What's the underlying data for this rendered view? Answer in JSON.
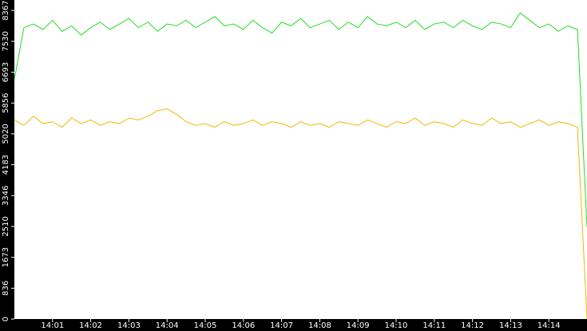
{
  "chart_data": {
    "type": "line",
    "x": [
      0,
      0.25,
      0.5,
      0.75,
      1,
      1.25,
      1.5,
      1.75,
      2,
      2.25,
      2.5,
      2.75,
      3,
      3.25,
      3.5,
      3.75,
      4,
      4.25,
      4.5,
      4.75,
      5,
      5.25,
      5.5,
      5.75,
      6,
      6.25,
      6.5,
      6.75,
      7,
      7.25,
      7.5,
      7.75,
      8,
      8.25,
      8.5,
      8.75,
      9,
      9.25,
      9.5,
      9.75,
      10,
      10.25,
      10.5,
      10.75,
      11,
      11.25,
      11.5,
      11.75,
      12,
      12.25,
      12.5,
      12.75,
      13,
      13.25,
      13.5,
      13.75,
      14,
      14.25,
      14.5,
      14.75,
      15
    ],
    "series": [
      {
        "color": "#22dd22",
        "values": [
          6500,
          7900,
          8000,
          7850,
          8100,
          7800,
          7950,
          7700,
          7900,
          8050,
          7850,
          8000,
          8150,
          7900,
          8050,
          7800,
          8000,
          7950,
          8100,
          7900,
          8050,
          8200,
          7950,
          8000,
          7850,
          8100,
          7900,
          7750,
          8050,
          7950,
          8150,
          7900,
          8000,
          8100,
          7850,
          8050,
          7900,
          8200,
          8000,
          7950,
          8050,
          7900,
          8100,
          7850,
          8000,
          8050,
          7900,
          8100,
          7950,
          7850,
          8050,
          8000,
          7900,
          8300,
          8100,
          7900,
          8000,
          7800,
          7950,
          7850,
          2500
        ]
      },
      {
        "color": "#f0b800",
        "values": [
          5400,
          5250,
          5500,
          5300,
          5350,
          5200,
          5450,
          5300,
          5400,
          5250,
          5350,
          5300,
          5450,
          5400,
          5500,
          5650,
          5700,
          5550,
          5350,
          5250,
          5300,
          5200,
          5350,
          5250,
          5300,
          5400,
          5250,
          5350,
          5300,
          5200,
          5350,
          5250,
          5300,
          5200,
          5350,
          5300,
          5250,
          5400,
          5300,
          5200,
          5350,
          5300,
          5450,
          5250,
          5350,
          5300,
          5200,
          5400,
          5300,
          5250,
          5450,
          5300,
          5350,
          5200,
          5300,
          5400,
          5250,
          5350,
          5300,
          5200,
          0
        ]
      }
    ],
    "xlim": [
      0,
      15
    ],
    "ylim": [
      0,
      8650
    ],
    "xticks": [
      {
        "value": 1,
        "label": "14:01"
      },
      {
        "value": 2,
        "label": "14:02"
      },
      {
        "value": 3,
        "label": "14:03"
      },
      {
        "value": 4,
        "label": "14:04"
      },
      {
        "value": 5,
        "label": "14:05"
      },
      {
        "value": 6,
        "label": "14:06"
      },
      {
        "value": 7,
        "label": "14:07"
      },
      {
        "value": 8,
        "label": "14:08"
      },
      {
        "value": 9,
        "label": "14:09"
      },
      {
        "value": 10,
        "label": "14:10"
      },
      {
        "value": 11,
        "label": "14:11"
      },
      {
        "value": 12,
        "label": "14:12"
      },
      {
        "value": 13,
        "label": "14:13"
      },
      {
        "value": 14,
        "label": "14:14"
      }
    ],
    "yticks": [
      0,
      836,
      1673,
      2510,
      3346,
      4183,
      5020,
      5856,
      6693,
      7530,
      8367
    ]
  }
}
